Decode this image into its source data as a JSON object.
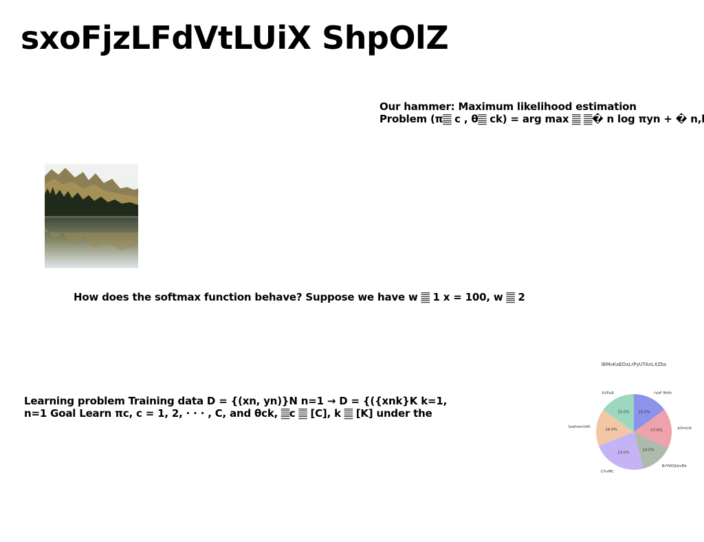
{
  "title": "sxoFjzLFdVtLUiX ShpOlZ",
  "blocks": {
    "hammer": [
      "Our hammer: Maximum likelihood estimation",
      "Problem (π𝄛 c , θ𝄛 ck) = arg max 𝄛 𝄛� n log πyn + � n,k"
    ],
    "softmax": "How does the softmax function behave? Suppose we have w 𝄛 1 x = 100, w 𝄛 2",
    "learning": [
      "Learning problem Training data D = {(xn, yn)}N n=1 → D = {({xnk}K k=1,",
      "n=1 Goal Learn πc, c = 1, 2, · · · , C, and θck, 𝄛c 𝄛 [C], k 𝄛 [K] under the"
    ]
  },
  "chart_data": {
    "type": "pie",
    "title": "lBMvKaEOxLrPyUTAnLXZbs",
    "labels": [
      "rVzF Mtfh",
      "pVmLAuT",
      "BrYWQkbvBk",
      "ChvMC",
      "OzwhemhAll",
      "XVPuR"
    ],
    "values": [
      15.0,
      17.0,
      14.0,
      23.0,
      16.0,
      15.0
    ],
    "value_labels": [
      "15.0%",
      "17.0%",
      "14.0%",
      "23.0%",
      "16.0%",
      "15.0%"
    ],
    "colors": [
      "#8b93ea",
      "#eea2ab",
      "#aebaae",
      "#c4b4f6",
      "#f2c7a6",
      "#9cd8bf"
    ]
  }
}
